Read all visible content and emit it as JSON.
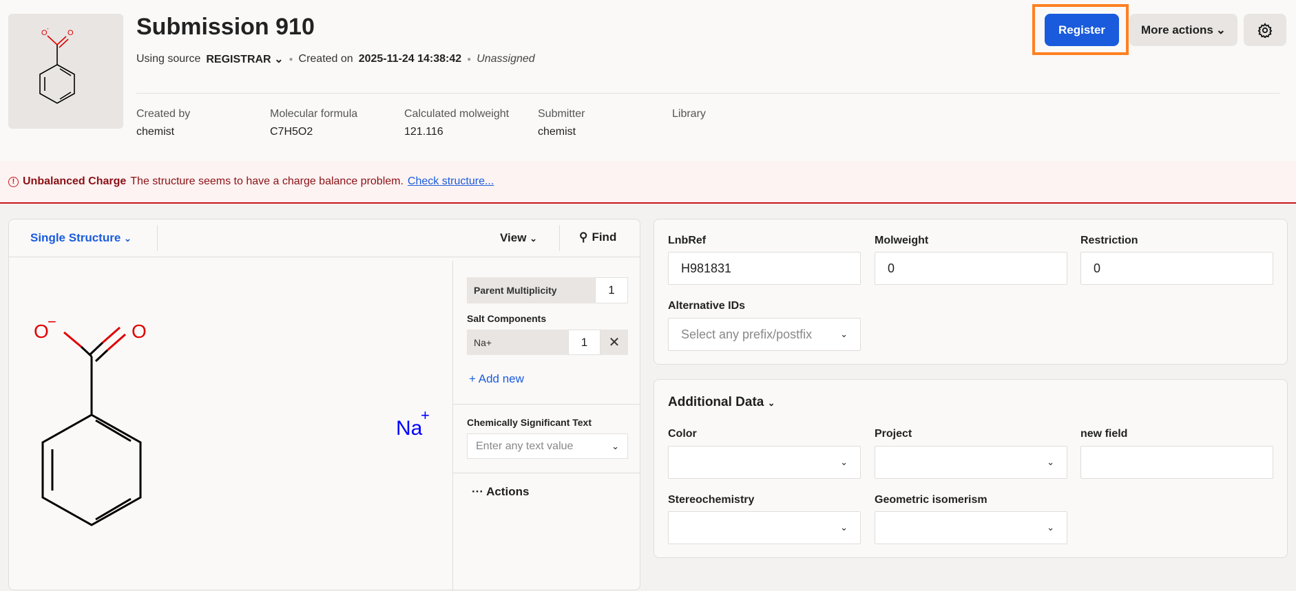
{
  "header": {
    "title": "Submission 910",
    "using_source_label": "Using source",
    "source": "REGISTRAR",
    "created_on_label": "Created on",
    "created_on": "2025-11-24 14:38:42",
    "assignee": "Unassigned",
    "info": [
      {
        "label": "Created by",
        "value": "chemist"
      },
      {
        "label": "Molecular formula",
        "value": "C7H5O2"
      },
      {
        "label": "Calculated molweight",
        "value": "121.116"
      },
      {
        "label": "Submitter",
        "value": "chemist"
      },
      {
        "label": "Library",
        "value": ""
      }
    ],
    "register_label": "Register",
    "more_actions_label": "More actions"
  },
  "alert": {
    "title": "Unbalanced Charge",
    "message": "The structure seems to have a charge balance problem.",
    "link": "Check structure..."
  },
  "structure_panel": {
    "mode": "Single Structure",
    "view": "View",
    "find": "Find",
    "atoms": {
      "o_minus": "O",
      "o": "O",
      "charge_minus": "−",
      "counter_ion": "Na",
      "counter_charge": "+"
    },
    "parent_multiplicity_label": "Parent Multiplicity",
    "parent_multiplicity": "1",
    "salt_components_label": "Salt Components",
    "salts": [
      {
        "name": "Na+",
        "count": "1"
      }
    ],
    "add_new": "Add new",
    "cst_label": "Chemically Significant Text",
    "cst_placeholder": "Enter any text value",
    "actions": "Actions"
  },
  "fields": {
    "lnbref": {
      "label": "LnbRef",
      "value": "H981831"
    },
    "molweight": {
      "label": "Molweight",
      "value": "0"
    },
    "restriction": {
      "label": "Restriction",
      "value": "0"
    },
    "alt_ids": {
      "label": "Alternative IDs",
      "placeholder": "Select any prefix/postfix"
    }
  },
  "additional": {
    "title": "Additional Data",
    "color": "Color",
    "project": "Project",
    "new_field": "new field",
    "stereo": "Stereochemistry",
    "geometric": "Geometric isomerism"
  },
  "colors": {
    "accent": "#1a5bdd",
    "alert": "#c8161d",
    "highlight": "#ff8020",
    "oxygen": "#e00000",
    "sodium": "#0000ff"
  }
}
